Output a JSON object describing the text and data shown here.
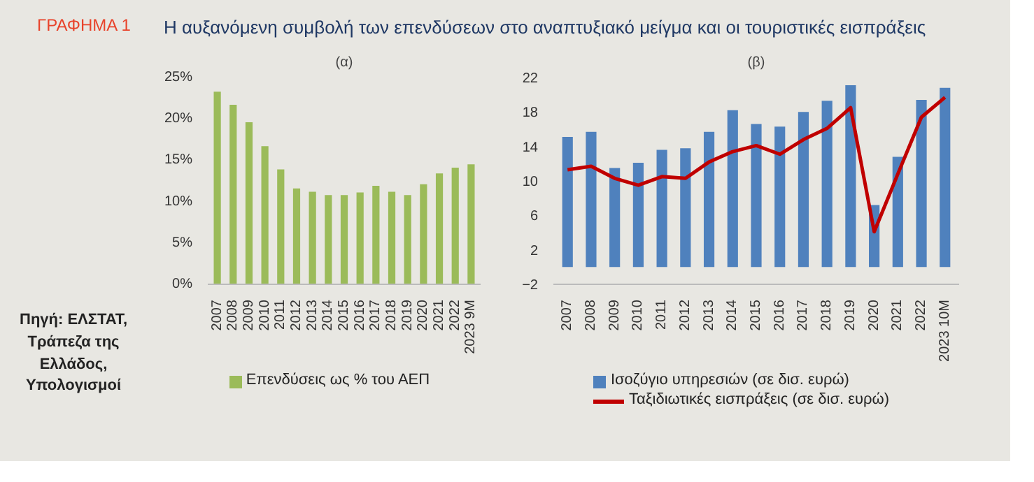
{
  "chart_data": [
    {
      "type": "bar",
      "title": "(α)",
      "annotations": [
        "ΓΡΑΦΗΜΑ 1",
        "Η αυξανόμενη συμβολή των επενδύσεων στο αναπτυξιακό μείγμα και οι τουριστικές εισπράξεις",
        "Πηγή: ΕΛΣΤΑΤ, Τράπεζα της Ελλάδος, Υπολογισμοί"
      ],
      "categories": [
        "2007",
        "2008",
        "2009",
        "2010",
        "2011",
        "2012",
        "2013",
        "2014",
        "2015",
        "2016",
        "2017",
        "2018",
        "2019",
        "2020",
        "2021",
        "2022",
        "2023 9M"
      ],
      "series": [
        {
          "name": "Επενδύσεις ως % του ΑΕΠ",
          "color": "#9bbb59",
          "values": [
            23.3,
            21.7,
            19.6,
            16.7,
            13.9,
            11.6,
            11.2,
            10.8,
            10.8,
            11.1,
            11.9,
            11.2,
            10.8,
            12.1,
            13.4,
            14.1,
            14.5
          ]
        }
      ],
      "ylim": [
        0,
        25
      ],
      "yticks": [
        {
          "value": 0,
          "label": "0%"
        },
        {
          "value": 5,
          "label": "5%"
        },
        {
          "value": 10,
          "label": "10%"
        },
        {
          "value": 15,
          "label": "15%"
        },
        {
          "value": 20,
          "label": "20%"
        },
        {
          "value": 25,
          "label": "25%"
        }
      ],
      "grid": false,
      "legend": "bottom"
    },
    {
      "type": "bar",
      "title": "(β)",
      "categories": [
        "2007",
        "2008",
        "2009",
        "2010",
        "2011",
        "2012",
        "2013",
        "2014",
        "2015",
        "2016",
        "2017",
        "2018",
        "2019",
        "2020",
        "2021",
        "2022",
        "2023 10M"
      ],
      "series": [
        {
          "name": "Ισοζύγιο υπηρεσιών (σε δισ. ευρώ)",
          "color": "#4f81bd",
          "values": [
            15.1,
            15.7,
            11.5,
            12.1,
            13.6,
            13.8,
            15.7,
            18.2,
            16.6,
            16.3,
            18.0,
            19.3,
            21.1,
            7.2,
            12.8,
            19.4,
            20.8
          ]
        },
        {
          "name": "Ταξιδιωτικές εισπράξεις (σε δισ. ευρώ)",
          "type": "line",
          "color": "#c00000",
          "values": [
            11.3,
            11.7,
            10.3,
            9.5,
            10.5,
            10.3,
            12.2,
            13.4,
            14.1,
            13.1,
            14.8,
            16.1,
            18.5,
            4.1,
            10.8,
            17.4,
            19.7
          ]
        }
      ],
      "ylim": [
        -2,
        22
      ],
      "yticks": [
        -2,
        2,
        6,
        10,
        14,
        18,
        22
      ],
      "grid": false,
      "legend": "bottom",
      "line_style": "solid",
      "marker": "none"
    }
  ]
}
